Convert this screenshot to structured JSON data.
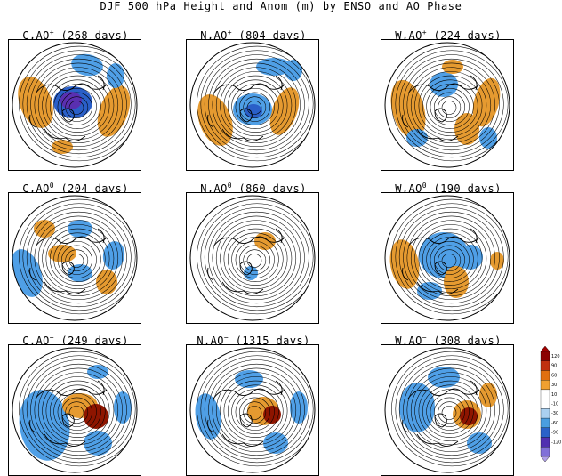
{
  "figure": {
    "title": "DJF 500 hPa Height and Anom (m) by ENSO and AO Phase"
  },
  "panels": [
    {
      "enso": "C",
      "ao": "+",
      "days": "(268 days)"
    },
    {
      "enso": "N",
      "ao": "+",
      "days": "(804 days)"
    },
    {
      "enso": "W",
      "ao": "+",
      "days": "(224 days)"
    },
    {
      "enso": "C",
      "ao": "0",
      "days": "(204 days)"
    },
    {
      "enso": "N",
      "ao": "0",
      "days": "(860 days)"
    },
    {
      "enso": "W",
      "ao": "0",
      "days": "(190 days)"
    },
    {
      "enso": "C",
      "ao": "−",
      "days": "(249 days)"
    },
    {
      "enso": "N",
      "ao": "−",
      "days": "(1315 days)"
    },
    {
      "enso": "W",
      "ao": "−",
      "days": "(308 days)"
    }
  ],
  "colorbar": {
    "labels": [
      "120",
      "90",
      "60",
      "30",
      "10",
      "-10",
      "-30",
      "-60",
      "-90",
      "-120"
    ],
    "colors": [
      "#ffffff",
      "#ffffff",
      "#f0a030",
      "#e07010",
      "#c03010",
      "#8c0000",
      "#aad0f0",
      "#4a9ee0",
      "#2a62c8",
      "#5030b0",
      "#8070d8"
    ],
    "top_color": "#a00000",
    "bottom_color": "#b0a0e8"
  }
}
